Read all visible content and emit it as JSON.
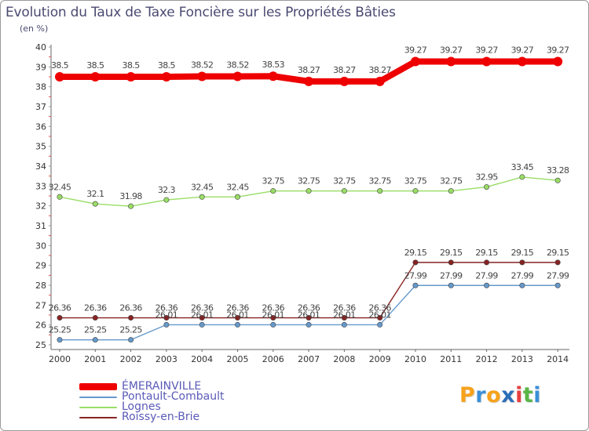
{
  "chart_data": {
    "type": "line",
    "title": "Evolution du Taux de Taxe Foncière sur les Propriétés Bâties",
    "ylabel": "(en %)",
    "xlabel": "",
    "ylim": [
      25,
      40
    ],
    "yticks": [
      "25",
      "26",
      "27",
      "28",
      "29",
      "30",
      "31",
      "32",
      "33",
      "34",
      "35",
      "36",
      "37",
      "38",
      "39",
      "40"
    ],
    "categories": [
      "2000",
      "2001",
      "2002",
      "2003",
      "2004",
      "2005",
      "2006",
      "2007",
      "2008",
      "2009",
      "2010",
      "2011",
      "2012",
      "2013",
      "2014"
    ],
    "series": [
      {
        "name": "ÉMERAINVILLE",
        "color": "#ee0000",
        "labels": [
          "38.5",
          "38.5",
          "38.5",
          "38.5",
          "38.52",
          "38.52",
          "38.53",
          "38.27",
          "38.27",
          "38.27",
          "39.27",
          "39.27",
          "39.27",
          "39.27",
          "39.27"
        ],
        "values": [
          38.5,
          38.5,
          38.5,
          38.5,
          38.52,
          38.52,
          38.53,
          38.27,
          38.27,
          38.27,
          39.27,
          39.27,
          39.27,
          39.27,
          39.27
        ]
      },
      {
        "name": "Pontault-Combault",
        "color": "#6699cc",
        "labels": [
          "25.25",
          "25.25",
          "25.25",
          "26.01",
          "26.01",
          "26.01",
          "26.01",
          "26.01",
          "26.01",
          "26.01",
          "27.99",
          "27.99",
          "27.99",
          "27.99",
          "27.99"
        ],
        "values": [
          25.25,
          25.25,
          25.25,
          26.01,
          26.01,
          26.01,
          26.01,
          26.01,
          26.01,
          26.01,
          27.99,
          27.99,
          27.99,
          27.99,
          27.99
        ]
      },
      {
        "name": "Lognes",
        "color": "#99dd66",
        "labels": [
          "32.45",
          "32.1",
          "31.98",
          "32.3",
          "32.45",
          "32.45",
          "32.75",
          "32.75",
          "32.75",
          "32.75",
          "32.75",
          "32.75",
          "32.95",
          "33.45",
          "33.28"
        ],
        "values": [
          32.45,
          32.1,
          31.98,
          32.3,
          32.45,
          32.45,
          32.75,
          32.75,
          32.75,
          32.75,
          32.75,
          32.75,
          32.95,
          33.45,
          33.28
        ]
      },
      {
        "name": "Roissy-en-Brie",
        "color": "#882222",
        "labels": [
          "26.36",
          "26.36",
          "26.36",
          "26.36",
          "26.36",
          "26.36",
          "26.36",
          "26.36",
          "26.36",
          "26.36",
          "29.15",
          "29.15",
          "29.15",
          "29.15",
          "29.15"
        ],
        "values": [
          26.36,
          26.36,
          26.36,
          26.36,
          26.36,
          26.36,
          26.36,
          26.36,
          26.36,
          26.36,
          29.15,
          29.15,
          29.15,
          29.15,
          29.15
        ]
      }
    ],
    "grid": false,
    "legend": "bottom-left"
  },
  "logo": {
    "letters": [
      "P",
      "r",
      "o",
      "x",
      "i",
      "t",
      "i"
    ],
    "colors": [
      "#f7a21b",
      "#3a8fd8",
      "#f7a21b",
      "#2c6fb7",
      "#e83f3f",
      "#59b548",
      "#3a8fd8"
    ]
  }
}
